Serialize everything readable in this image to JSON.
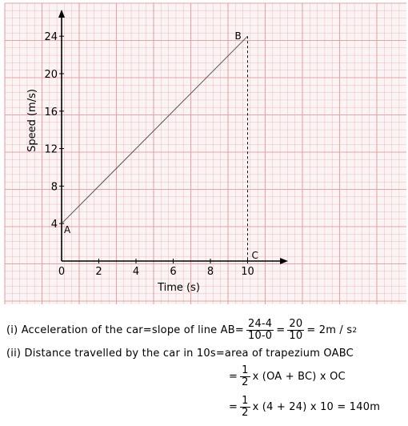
{
  "chart_data": {
    "type": "line",
    "xlabel": "Time (s)",
    "ylabel": "Speed (m/s)",
    "x_ticks": [
      0,
      2,
      4,
      6,
      8,
      10
    ],
    "y_ticks": [
      4,
      8,
      12,
      16,
      20,
      24
    ],
    "x_tick_labels": [
      "0",
      "2",
      "4",
      "6",
      "8",
      "10"
    ],
    "y_tick_labels": [
      "4",
      "8",
      "12",
      "16",
      "20",
      "24"
    ],
    "xlim": [
      0,
      12
    ],
    "ylim": [
      0,
      28
    ],
    "grid": true,
    "grid_color": "#e8a3a3",
    "series": [
      {
        "x": [
          0,
          10
        ],
        "y": [
          4,
          24
        ]
      }
    ],
    "points": [
      {
        "label": "A",
        "x": 0,
        "y": 4
      },
      {
        "label": "B",
        "x": 10,
        "y": 24
      },
      {
        "label": "C",
        "x": 10,
        "y": 0
      }
    ],
    "dashed_line": {
      "from": [
        10,
        24
      ],
      "to": [
        10,
        0
      ]
    }
  },
  "solution": {
    "line1_prefix": "(i) Acceleration of the car=slope of line AB=",
    "line1_frac1_num": "24-4",
    "line1_frac1_den": "10-0",
    "line1_eq": "=",
    "line1_frac2_num": "20",
    "line1_frac2_den": "10",
    "line1_result": "= 2m / s",
    "line1_result_sup": "2",
    "line2": "(ii) Distance travelled by the car in 10s=area of trapezium OABC",
    "line3_eq": "=",
    "line3_frac_num": "1",
    "line3_frac_den": "2",
    "line3_rest": "x (OA + BC) x OC",
    "line4_eq": "=",
    "line4_frac_num": "1",
    "line4_frac_den": "2",
    "line4_rest": "x (4 + 24) x 10 = 140m"
  }
}
